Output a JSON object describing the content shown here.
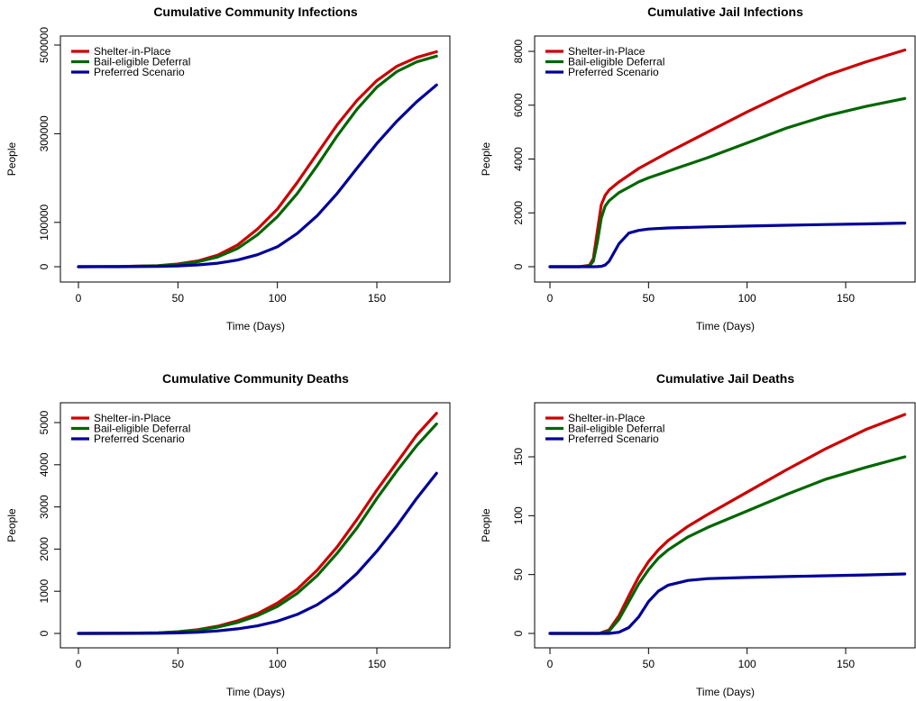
{
  "figure": {
    "legend_position": "top-left",
    "series_colors": {
      "shelter": "#cc0000",
      "bail": "#006600",
      "preferred": "#000099"
    }
  },
  "chart_data": [
    {
      "type": "line",
      "title": "Cumulative Community Infections",
      "xlabel": "Time (Days)",
      "ylabel": "People",
      "xlim": [
        0,
        180
      ],
      "ylim": [
        0,
        500000
      ],
      "xticks": [
        0,
        50,
        100,
        150
      ],
      "yticks": [
        0,
        100000,
        300000,
        500000
      ],
      "ytick_rotation": "vertical",
      "legend": [
        "Shelter-in-Place",
        "Bail-eligible Deferral",
        "Preferred Scenario"
      ],
      "x": [
        0,
        20,
        40,
        50,
        60,
        70,
        80,
        90,
        100,
        110,
        120,
        130,
        140,
        150,
        160,
        170,
        180
      ],
      "series": [
        {
          "name": "Shelter-in-Place",
          "color": "#cc0000",
          "values": [
            0,
            500,
            2500,
            6000,
            13000,
            26000,
            49000,
            85000,
            130000,
            190000,
            255000,
            320000,
            375000,
            420000,
            452000,
            472000,
            485000
          ]
        },
        {
          "name": "Bail-eligible Deferral",
          "color": "#006600",
          "values": [
            0,
            400,
            2000,
            5000,
            11000,
            22000,
            41000,
            72000,
            113000,
            165000,
            228000,
            295000,
            355000,
            405000,
            440000,
            462000,
            475000
          ]
        },
        {
          "name": "Preferred Scenario",
          "color": "#000099",
          "values": [
            0,
            100,
            700,
            1800,
            4000,
            8000,
            15000,
            27000,
            45000,
            75000,
            115000,
            165000,
            222000,
            278000,
            328000,
            372000,
            410000
          ]
        }
      ]
    },
    {
      "type": "line",
      "title": "Cumulative Jail Infections",
      "xlabel": "Time (Days)",
      "ylabel": "People",
      "xlim": [
        0,
        180
      ],
      "ylim": [
        0,
        8000
      ],
      "xticks": [
        0,
        50,
        100,
        150
      ],
      "yticks": [
        0,
        2000,
        4000,
        6000,
        8000
      ],
      "ytick_rotation": "vertical",
      "legend": [
        "Shelter-in-Place",
        "Bail-eligible Deferral",
        "Preferred Scenario"
      ],
      "x": [
        0,
        15,
        20,
        22,
        24,
        26,
        28,
        30,
        35,
        40,
        45,
        50,
        60,
        80,
        100,
        120,
        140,
        160,
        180
      ],
      "series": [
        {
          "name": "Shelter-in-Place",
          "color": "#cc0000",
          "values": [
            0,
            0,
            50,
            300,
            1300,
            2300,
            2650,
            2850,
            3150,
            3400,
            3650,
            3850,
            4250,
            5000,
            5750,
            6450,
            7100,
            7600,
            8050
          ]
        },
        {
          "name": "Bail-eligible Deferral",
          "color": "#006600",
          "values": [
            0,
            0,
            30,
            200,
            900,
            1800,
            2250,
            2450,
            2750,
            2950,
            3150,
            3300,
            3550,
            4050,
            4600,
            5150,
            5600,
            5950,
            6250
          ]
        },
        {
          "name": "Preferred Scenario",
          "color": "#000099",
          "values": [
            0,
            0,
            0,
            0,
            5,
            15,
            60,
            200,
            850,
            1250,
            1350,
            1400,
            1440,
            1480,
            1510,
            1540,
            1565,
            1590,
            1620
          ]
        }
      ]
    },
    {
      "type": "line",
      "title": "Cumulative Community Deaths",
      "xlabel": "Time (Days)",
      "ylabel": "People",
      "xlim": [
        0,
        180
      ],
      "ylim": [
        0,
        5000
      ],
      "xticks": [
        0,
        50,
        100,
        150
      ],
      "yticks": [
        0,
        1000,
        2000,
        3000,
        4000,
        5000
      ],
      "ytick_rotation": "vertical",
      "legend": [
        "Shelter-in-Place",
        "Bail-eligible Deferral",
        "Preferred Scenario"
      ],
      "x": [
        0,
        20,
        40,
        50,
        60,
        70,
        80,
        90,
        100,
        110,
        120,
        130,
        140,
        150,
        160,
        170,
        180
      ],
      "series": [
        {
          "name": "Shelter-in-Place",
          "color": "#cc0000",
          "values": [
            0,
            2,
            15,
            40,
            90,
            170,
            300,
            470,
            720,
            1050,
            1500,
            2050,
            2700,
            3400,
            4050,
            4700,
            5220
          ]
        },
        {
          "name": "Bail-eligible Deferral",
          "color": "#006600",
          "values": [
            0,
            2,
            12,
            35,
            80,
            150,
            260,
            420,
            640,
            950,
            1370,
            1900,
            2500,
            3200,
            3850,
            4450,
            4970
          ]
        },
        {
          "name": "Preferred Scenario",
          "color": "#000099",
          "values": [
            0,
            1,
            5,
            12,
            30,
            60,
            110,
            180,
            290,
            450,
            680,
            1000,
            1420,
            1950,
            2550,
            3200,
            3800
          ]
        }
      ]
    },
    {
      "type": "line",
      "title": "Cumulative Jail Deaths",
      "xlabel": "Time (Days)",
      "ylabel": "People",
      "xlim": [
        0,
        180
      ],
      "ylim": [
        0,
        180
      ],
      "xticks": [
        0,
        50,
        100,
        150
      ],
      "yticks": [
        0,
        50,
        100,
        150
      ],
      "ytick_rotation": "vertical",
      "legend": [
        "Shelter-in-Place",
        "Bail-eligible Deferral",
        "Preferred Scenario"
      ],
      "x": [
        0,
        25,
        30,
        35,
        40,
        45,
        50,
        55,
        60,
        70,
        80,
        100,
        120,
        140,
        160,
        180
      ],
      "series": [
        {
          "name": "Shelter-in-Place",
          "color": "#cc0000",
          "values": [
            0,
            0,
            3,
            15,
            32,
            48,
            61,
            71,
            79,
            91,
            101,
            120,
            139,
            157,
            173,
            186
          ]
        },
        {
          "name": "Bail-eligible Deferral",
          "color": "#006600",
          "values": [
            0,
            0,
            2,
            12,
            27,
            42,
            54,
            64,
            71,
            82,
            90,
            104,
            118,
            131,
            141,
            150
          ]
        },
        {
          "name": "Preferred Scenario",
          "color": "#000099",
          "values": [
            0,
            0,
            0,
            1,
            5,
            14,
            27,
            36,
            41,
            45,
            46.5,
            47.5,
            48.3,
            49,
            49.7,
            50.5
          ]
        }
      ]
    }
  ]
}
